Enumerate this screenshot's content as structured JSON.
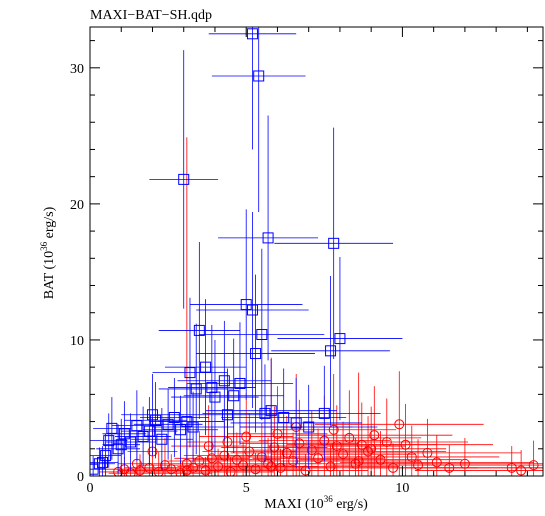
{
  "chart_data": {
    "type": "scatter",
    "title": "MAXI−BAT−SH.qdp",
    "xlabel": {
      "pre": "MAXI (10",
      "sup": "36",
      "post": " erg/s)"
    },
    "ylabel": {
      "pre": "BAT (10",
      "sup": "36",
      "post": " erg/s)"
    },
    "xlim": [
      0,
      14.5
    ],
    "ylim": [
      0,
      33
    ],
    "x_ticks": [
      {
        "v": 0,
        "label": "0"
      },
      {
        "v": 5,
        "label": "5"
      },
      {
        "v": 10,
        "label": "10"
      }
    ],
    "y_ticks": [
      {
        "v": 0,
        "label": "0"
      },
      {
        "v": 10,
        "label": "10"
      },
      {
        "v": 20,
        "label": "20"
      },
      {
        "v": 30,
        "label": "30"
      }
    ],
    "grid": false,
    "legend": "none",
    "series": [
      {
        "color": "#ff0000",
        "marker": "circle",
        "points": [
          [
            0.9,
            0.3,
            0.6,
            0.8
          ],
          [
            1.1,
            0.5,
            0.6,
            0.9
          ],
          [
            1.3,
            0.2,
            0.7,
            0.6
          ],
          [
            1.6,
            0.4,
            0.7,
            1.2
          ],
          [
            1.9,
            0.6,
            0.8,
            1.0
          ],
          [
            2.2,
            0.3,
            0.8,
            1.5
          ],
          [
            2.4,
            0.8,
            0.9,
            2.0
          ],
          [
            2.6,
            0.5,
            0.9,
            1.1
          ],
          [
            2.9,
            0.2,
            1.0,
            0.9
          ],
          [
            3.1,
            0.9,
            1.0,
            1.6
          ],
          [
            3.3,
            0.6,
            1.1,
            1.8
          ],
          [
            3.5,
            1.1,
            1.1,
            2.2
          ],
          [
            3.7,
            0.4,
            1.2,
            1.0
          ],
          [
            3.9,
            1.3,
            1.2,
            2.4
          ],
          [
            4.1,
            0.7,
            1.3,
            1.3
          ],
          [
            4.3,
            1.5,
            1.3,
            2.6
          ],
          [
            4.5,
            0.3,
            1.4,
            1.1
          ],
          [
            4.7,
            1.2,
            1.4,
            2.0
          ],
          [
            4.9,
            0.8,
            1.5,
            1.7
          ],
          [
            5.1,
            1.8,
            1.5,
            2.8
          ],
          [
            5.3,
            0.5,
            1.6,
            1.2
          ],
          [
            5.5,
            1.4,
            1.6,
            2.5
          ],
          [
            5.7,
            0.9,
            1.7,
            1.9
          ],
          [
            5.9,
            2.1,
            1.7,
            3.0
          ],
          [
            6.1,
            0.6,
            1.8,
            1.4
          ],
          [
            6.3,
            1.7,
            1.8,
            2.7
          ],
          [
            6.5,
            1.1,
            1.9,
            2.1
          ],
          [
            6.7,
            2.4,
            1.9,
            3.2
          ],
          [
            6.9,
            0.4,
            2.0,
            1.2
          ],
          [
            7.1,
            1.9,
            2.0,
            2.9
          ],
          [
            7.3,
            1.3,
            2.1,
            2.2
          ],
          [
            7.5,
            2.6,
            2.1,
            3.3
          ],
          [
            7.7,
            0.7,
            2.2,
            1.6
          ],
          [
            7.9,
            2.2,
            2.2,
            3.0
          ],
          [
            8.1,
            1.6,
            2.3,
            2.4
          ],
          [
            8.3,
            2.8,
            2.3,
            3.5
          ],
          [
            8.5,
            0.9,
            2.4,
            1.9
          ],
          [
            8.7,
            2.3,
            2.4,
            3.1
          ],
          [
            8.9,
            1.8,
            2.5,
            2.6
          ],
          [
            9.1,
            3.0,
            2.5,
            3.6
          ],
          [
            9.3,
            1.2,
            2.6,
            2.1
          ],
          [
            9.5,
            2.5,
            2.6,
            3.2
          ],
          [
            9.7,
            0.6,
            2.7,
            1.8
          ],
          [
            9.9,
            3.8,
            2.7,
            3.9
          ],
          [
            10.1,
            2.3,
            2.8,
            3.0
          ],
          [
            10.3,
            1.4,
            2.8,
            2.3
          ],
          [
            10.5,
            0.8,
            2.9,
            1.9
          ],
          [
            10.8,
            1.7,
            3.0,
            2.5
          ],
          [
            11.1,
            1.0,
            3.1,
            2.0
          ],
          [
            11.5,
            0.6,
            3.2,
            1.7
          ],
          [
            12.0,
            0.9,
            3.3,
            1.9
          ],
          [
            13.5,
            0.6,
            3.4,
            1.6
          ],
          [
            13.8,
            0.4,
            3.4,
            1.5
          ],
          [
            14.2,
            0.8,
            3.5,
            1.8
          ],
          [
            3.1,
            0.4,
            1.0,
            24.5
          ],
          [
            5.8,
            0.7,
            1.5,
            8.0
          ],
          [
            8.6,
            1.1,
            2.0,
            6.5
          ],
          [
            4.4,
            2.5,
            1.3,
            3.8
          ],
          [
            6.0,
            3.1,
            1.6,
            3.5
          ],
          [
            7.8,
            3.4,
            2.0,
            4.1
          ],
          [
            2.0,
            1.8,
            0.8,
            2.5
          ],
          [
            5.0,
            2.9,
            1.5,
            3.2
          ],
          [
            6.6,
            3.6,
            1.8,
            3.9
          ],
          [
            9.0,
            2.0,
            2.4,
            3.1
          ],
          [
            1.5,
            0.9,
            0.6,
            1.6
          ],
          [
            3.8,
            2.2,
            1.2,
            3.0
          ]
        ]
      },
      {
        "color": "#0000ff",
        "marker": "square",
        "points": [
          [
            0.1,
            0.5,
            0.4,
            1.0
          ],
          [
            0.3,
            0.9,
            0.5,
            1.2
          ],
          [
            0.5,
            1.5,
            0.5,
            1.6
          ],
          [
            0.6,
            2.6,
            0.6,
            2.0
          ],
          [
            0.7,
            3.5,
            0.6,
            2.3
          ],
          [
            0.9,
            2.0,
            0.7,
            1.8
          ],
          [
            1.1,
            3.1,
            0.7,
            2.4
          ],
          [
            1.3,
            2.5,
            0.8,
            2.1
          ],
          [
            1.5,
            3.7,
            0.8,
            2.6
          ],
          [
            1.7,
            2.9,
            0.9,
            2.2
          ],
          [
            1.9,
            3.3,
            0.9,
            2.5
          ],
          [
            2.1,
            4.1,
            1.0,
            2.8
          ],
          [
            2.3,
            2.7,
            1.0,
            2.3
          ],
          [
            2.5,
            3.8,
            1.1,
            2.6
          ],
          [
            2.7,
            4.3,
            1.1,
            2.9
          ],
          [
            2.9,
            3.4,
            1.2,
            2.5
          ],
          [
            3.1,
            4.0,
            1.2,
            2.8
          ],
          [
            3.3,
            3.6,
            1.3,
            2.6
          ],
          [
            3.2,
            7.6,
            1.2,
            5.5
          ],
          [
            3.4,
            6.4,
            1.2,
            4.8
          ],
          [
            3.5,
            10.7,
            1.3,
            6.5
          ],
          [
            3.7,
            8.0,
            1.3,
            5.0
          ],
          [
            3.9,
            6.5,
            1.4,
            4.6
          ],
          [
            4.0,
            5.8,
            1.4,
            4.2
          ],
          [
            4.3,
            7.0,
            1.5,
            4.4
          ],
          [
            4.6,
            5.9,
            1.6,
            4.2
          ],
          [
            4.8,
            6.8,
            1.7,
            4.5
          ],
          [
            5.0,
            12.6,
            1.8,
            7.0
          ],
          [
            5.2,
            12.2,
            1.8,
            7.2
          ],
          [
            5.3,
            9.0,
            1.9,
            5.8
          ],
          [
            5.5,
            10.4,
            2.0,
            6.3
          ],
          [
            5.6,
            4.6,
            2.0,
            3.6
          ],
          [
            5.8,
            4.8,
            2.1,
            3.8
          ],
          [
            3.0,
            21.8,
            1.1,
            9.5
          ],
          [
            5.2,
            32.5,
            1.4,
            8.5
          ],
          [
            5.4,
            29.4,
            1.5,
            10.0
          ],
          [
            5.7,
            17.5,
            1.6,
            9.0
          ],
          [
            7.8,
            17.1,
            1.9,
            8.5
          ],
          [
            8.0,
            10.1,
            2.0,
            6.0
          ],
          [
            7.7,
            9.2,
            1.9,
            5.5
          ],
          [
            7.5,
            4.6,
            1.8,
            3.5
          ],
          [
            6.2,
            4.3,
            2.0,
            3.6
          ],
          [
            6.6,
            3.9,
            2.1,
            3.3
          ],
          [
            7.0,
            3.6,
            2.2,
            3.1
          ],
          [
            4.4,
            4.5,
            1.6,
            3.4
          ],
          [
            2.0,
            4.5,
            1.0,
            3.0
          ],
          [
            1.0,
            2.3,
            0.6,
            1.9
          ],
          [
            0.4,
            1.0,
            0.5,
            1.2
          ]
        ]
      }
    ]
  }
}
